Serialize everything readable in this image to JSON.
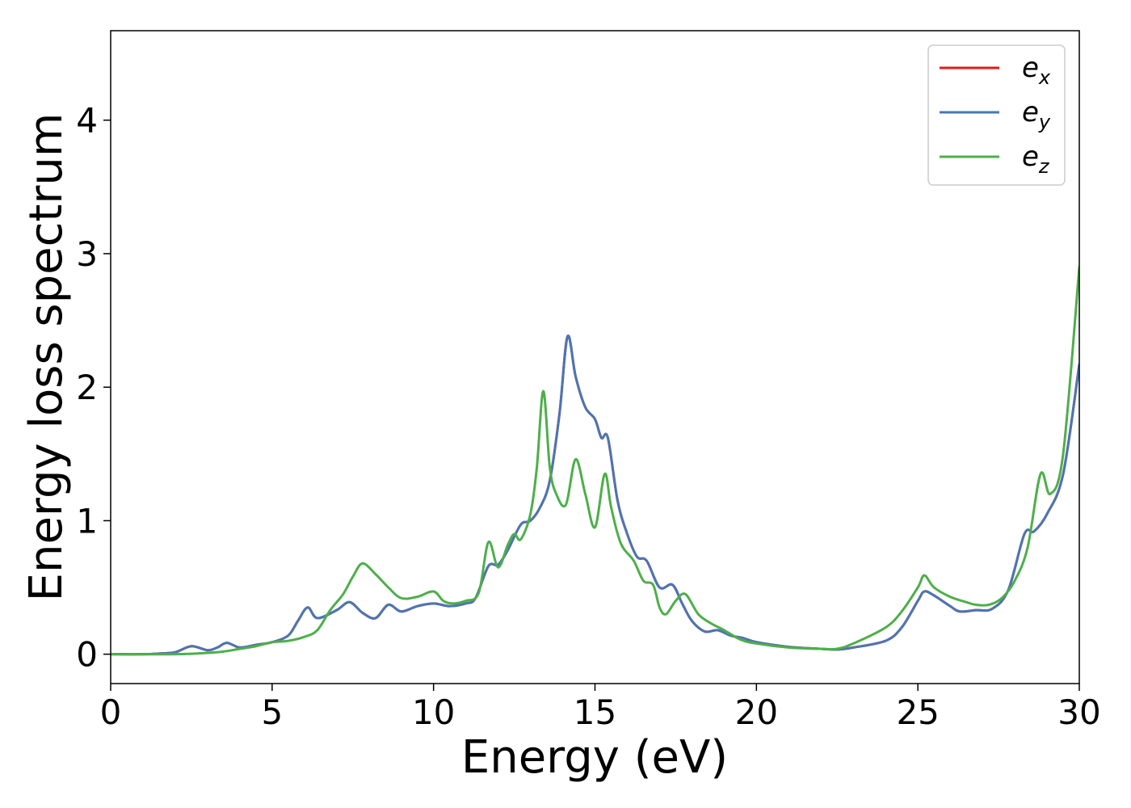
{
  "chart_data": {
    "type": "line",
    "xlabel": "Energy (eV)",
    "ylabel": "Energy loss spectrum",
    "xlim": [
      0,
      30
    ],
    "ylim": [
      -0.22,
      4.67
    ],
    "xticks": [
      0,
      5,
      10,
      15,
      20,
      25,
      30
    ],
    "xtick_labels": [
      "0",
      "5",
      "10",
      "15",
      "20",
      "25",
      "30"
    ],
    "yticks": [
      0,
      1,
      2,
      3,
      4
    ],
    "ytick_labels": [
      "0",
      "1",
      "2",
      "3",
      "4"
    ],
    "grid": false,
    "legend_position": "top-right",
    "series": [
      {
        "name": "e",
        "subscript": "x",
        "color": "#e41a1c",
        "x": [
          0,
          1,
          1.5,
          2,
          2.5,
          3,
          3.3,
          3.6,
          4,
          4.5,
          5,
          5.5,
          5.8,
          6.1,
          6.4,
          7,
          7.4,
          7.8,
          8.2,
          8.6,
          9,
          9.5,
          10,
          10.5,
          11,
          11.3,
          11.7,
          12,
          12.3,
          12.7,
          13,
          13.3,
          13.6,
          13.9,
          14.15,
          14.4,
          14.7,
          15,
          15.2,
          15.4,
          15.7,
          16,
          16.3,
          16.6,
          17,
          17.4,
          17.7,
          18,
          18.4,
          18.8,
          19.2,
          19.6,
          20,
          21,
          22,
          22.5,
          23,
          24,
          24.5,
          25,
          25.2,
          25.5,
          26,
          26.3,
          26.8,
          27.3,
          27.8,
          28.3,
          28.6,
          29,
          29.5,
          30
        ],
        "y": [
          0,
          0,
          0.005,
          0.015,
          0.06,
          0.03,
          0.05,
          0.085,
          0.05,
          0.07,
          0.09,
          0.14,
          0.25,
          0.35,
          0.27,
          0.33,
          0.39,
          0.31,
          0.27,
          0.37,
          0.32,
          0.36,
          0.38,
          0.36,
          0.38,
          0.42,
          0.66,
          0.67,
          0.78,
          0.97,
          1.0,
          1.1,
          1.3,
          1.8,
          2.38,
          2.08,
          1.85,
          1.76,
          1.62,
          1.62,
          1.15,
          0.9,
          0.73,
          0.7,
          0.5,
          0.52,
          0.38,
          0.25,
          0.17,
          0.18,
          0.14,
          0.12,
          0.09,
          0.055,
          0.04,
          0.035,
          0.05,
          0.1,
          0.2,
          0.4,
          0.47,
          0.44,
          0.36,
          0.32,
          0.33,
          0.34,
          0.48,
          0.9,
          0.92,
          1.05,
          1.35,
          2.17
        ]
      },
      {
        "name": "e",
        "subscript": "y",
        "color": "#4a76b4",
        "x": [
          0,
          1,
          1.5,
          2,
          2.5,
          3,
          3.3,
          3.6,
          4,
          4.5,
          5,
          5.5,
          5.8,
          6.1,
          6.4,
          7,
          7.4,
          7.8,
          8.2,
          8.6,
          9,
          9.5,
          10,
          10.5,
          11,
          11.3,
          11.7,
          12,
          12.3,
          12.7,
          13,
          13.3,
          13.6,
          13.9,
          14.15,
          14.4,
          14.7,
          15,
          15.2,
          15.4,
          15.7,
          16,
          16.3,
          16.6,
          17,
          17.4,
          17.7,
          18,
          18.4,
          18.8,
          19.2,
          19.6,
          20,
          21,
          22,
          22.5,
          23,
          24,
          24.5,
          25,
          25.2,
          25.5,
          26,
          26.3,
          26.8,
          27.3,
          27.8,
          28.3,
          28.6,
          29,
          29.5,
          30
        ],
        "y": [
          0,
          0,
          0.005,
          0.015,
          0.06,
          0.03,
          0.05,
          0.085,
          0.05,
          0.07,
          0.09,
          0.14,
          0.25,
          0.35,
          0.27,
          0.33,
          0.39,
          0.31,
          0.27,
          0.37,
          0.32,
          0.36,
          0.38,
          0.36,
          0.38,
          0.42,
          0.66,
          0.67,
          0.78,
          0.97,
          1.0,
          1.1,
          1.3,
          1.8,
          2.38,
          2.08,
          1.85,
          1.76,
          1.62,
          1.62,
          1.15,
          0.9,
          0.73,
          0.7,
          0.5,
          0.52,
          0.38,
          0.25,
          0.17,
          0.18,
          0.14,
          0.12,
          0.09,
          0.055,
          0.04,
          0.035,
          0.05,
          0.1,
          0.2,
          0.4,
          0.47,
          0.44,
          0.36,
          0.32,
          0.33,
          0.34,
          0.48,
          0.9,
          0.92,
          1.05,
          1.35,
          2.17
        ]
      },
      {
        "name": "e",
        "subscript": "z",
        "color": "#4daf4a",
        "x": [
          0,
          2,
          3,
          3.5,
          4,
          4.5,
          5,
          5.5,
          6,
          6.4,
          6.8,
          7.2,
          7.5,
          7.8,
          8.2,
          8.6,
          9,
          9.5,
          10,
          10.3,
          10.6,
          11,
          11.4,
          11.7,
          12,
          12.3,
          12.5,
          12.7,
          13,
          13.2,
          13.4,
          13.6,
          13.8,
          14.1,
          14.4,
          14.7,
          15,
          15.3,
          15.5,
          15.8,
          16.2,
          16.5,
          16.8,
          17,
          17.2,
          17.5,
          17.8,
          18.2,
          18.6,
          19,
          19.5,
          20,
          21,
          22,
          22.5,
          23,
          24,
          24.5,
          25,
          25.2,
          25.5,
          26,
          26.5,
          26.8,
          27.2,
          27.6,
          28,
          28.4,
          28.8,
          29.1,
          29.5,
          30
        ],
        "y": [
          0,
          0,
          0.01,
          0.02,
          0.04,
          0.06,
          0.09,
          0.1,
          0.13,
          0.18,
          0.33,
          0.45,
          0.58,
          0.68,
          0.6,
          0.5,
          0.42,
          0.43,
          0.47,
          0.4,
          0.38,
          0.4,
          0.46,
          0.84,
          0.65,
          0.82,
          0.9,
          0.86,
          1.05,
          1.4,
          1.97,
          1.4,
          1.2,
          1.12,
          1.46,
          1.2,
          0.95,
          1.35,
          1.1,
          0.83,
          0.7,
          0.55,
          0.52,
          0.35,
          0.3,
          0.4,
          0.45,
          0.3,
          0.23,
          0.18,
          0.11,
          0.08,
          0.05,
          0.04,
          0.04,
          0.08,
          0.2,
          0.32,
          0.5,
          0.59,
          0.5,
          0.43,
          0.39,
          0.37,
          0.37,
          0.42,
          0.55,
          0.8,
          1.35,
          1.2,
          1.5,
          2.9
        ]
      }
    ]
  }
}
